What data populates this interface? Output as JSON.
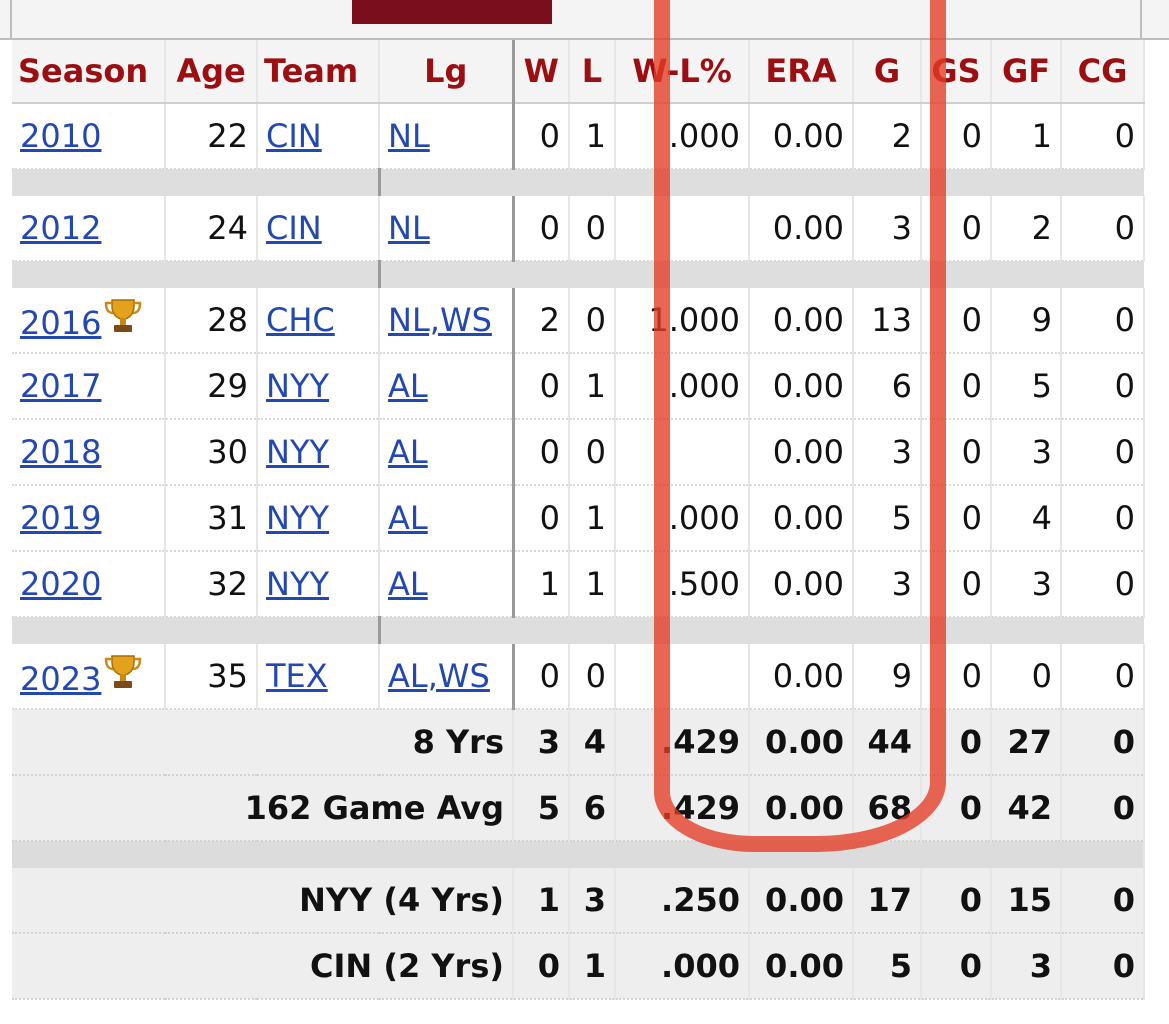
{
  "table": {
    "headers": [
      "Season",
      "Age",
      "Team",
      "Lg",
      "W",
      "L",
      "W-L%",
      "ERA",
      "G",
      "GS",
      "GF",
      "CG"
    ],
    "rows": [
      {
        "season": "2010",
        "age": "22",
        "team": "CIN",
        "lg": "NL",
        "w": "0",
        "l": "1",
        "wlp": ".000",
        "era": "0.00",
        "g": "2",
        "gs": "0",
        "gf": "1",
        "cg": "0"
      },
      {
        "season": "2012",
        "age": "24",
        "team": "CIN",
        "lg": "NL",
        "w": "0",
        "l": "0",
        "wlp": "",
        "era": "0.00",
        "g": "3",
        "gs": "0",
        "gf": "2",
        "cg": "0"
      },
      {
        "season": "2016",
        "age": "28",
        "team": "CHC",
        "lg": "NL,WS",
        "w": "2",
        "l": "0",
        "wlp": "1.000",
        "era": "0.00",
        "g": "13",
        "gs": "0",
        "gf": "9",
        "cg": "0"
      },
      {
        "season": "2017",
        "age": "29",
        "team": "NYY",
        "lg": "AL",
        "w": "0",
        "l": "1",
        "wlp": ".000",
        "era": "0.00",
        "g": "6",
        "gs": "0",
        "gf": "5",
        "cg": "0"
      },
      {
        "season": "2018",
        "age": "30",
        "team": "NYY",
        "lg": "AL",
        "w": "0",
        "l": "0",
        "wlp": "",
        "era": "0.00",
        "g": "3",
        "gs": "0",
        "gf": "3",
        "cg": "0"
      },
      {
        "season": "2019",
        "age": "31",
        "team": "NYY",
        "lg": "AL",
        "w": "0",
        "l": "1",
        "wlp": ".000",
        "era": "0.00",
        "g": "5",
        "gs": "0",
        "gf": "4",
        "cg": "0"
      },
      {
        "season": "2020",
        "age": "32",
        "team": "NYY",
        "lg": "AL",
        "w": "1",
        "l": "1",
        "wlp": ".500",
        "era": "0.00",
        "g": "3",
        "gs": "0",
        "gf": "3",
        "cg": "0"
      },
      {
        "season": "2023",
        "age": "35",
        "team": "TEX",
        "lg": "AL,WS",
        "w": "0",
        "l": "0",
        "wlp": "",
        "era": "0.00",
        "g": "9",
        "gs": "0",
        "gf": "0",
        "cg": "0"
      }
    ],
    "totals": [
      {
        "label": "8 Yrs",
        "w": "3",
        "l": "4",
        "wlp": ".429",
        "era": "0.00",
        "g": "44",
        "gs": "0",
        "gf": "27",
        "cg": "0"
      },
      {
        "label": "162 Game Avg",
        "w": "5",
        "l": "6",
        "wlp": ".429",
        "era": "0.00",
        "g": "68",
        "gs": "0",
        "gf": "42",
        "cg": "0"
      },
      {
        "label": "NYY (4 Yrs)",
        "w": "1",
        "l": "3",
        "wlp": ".250",
        "era": "0.00",
        "g": "17",
        "gs": "0",
        "gf": "15",
        "cg": "0"
      },
      {
        "label": "CIN (2 Yrs)",
        "w": "0",
        "l": "1",
        "wlp": ".000",
        "era": "0.00",
        "g": "5",
        "gs": "0",
        "gf": "3",
        "cg": "0"
      }
    ]
  },
  "colors": {
    "header_text": "#9b0f12",
    "link": "#2348b0",
    "annotation": "#e43c26",
    "top_tab": "#7a0e1d"
  },
  "icons": {
    "world_series_trophy": "trophy-icon",
    "annotation_loop": "red-hand-drawn-loop"
  }
}
